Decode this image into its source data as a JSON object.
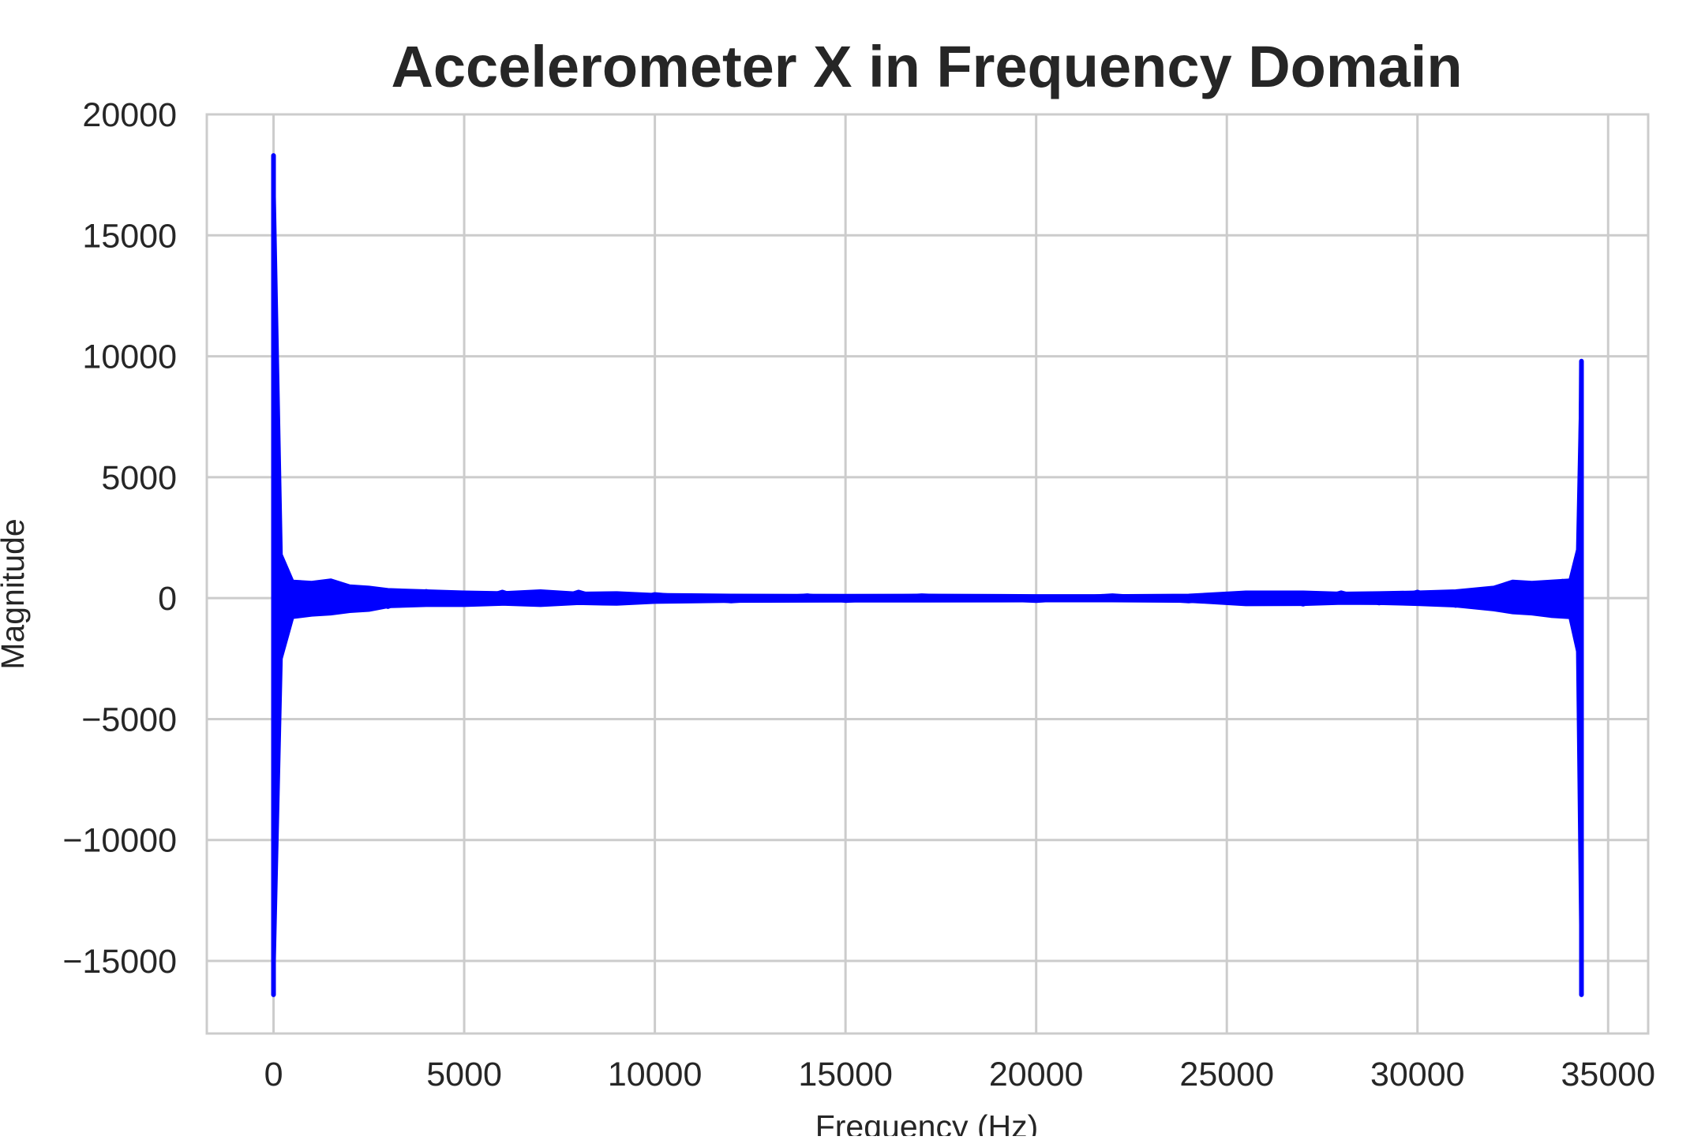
{
  "chart_data": {
    "type": "line",
    "title": "Accelerometer X in Frequency Domain",
    "xlabel": "Frequency (Hz)",
    "ylabel": "Magnitude",
    "xlim": [
      -1750,
      36050
    ],
    "ylim": [
      -18000,
      20000
    ],
    "grid": true,
    "legend": "none",
    "x_ticks": [
      0,
      5000,
      10000,
      15000,
      20000,
      25000,
      30000,
      35000
    ],
    "x_tick_labels": [
      "0",
      "5000",
      "10000",
      "15000",
      "20000",
      "25000",
      "30000",
      "35000"
    ],
    "y_ticks": [
      20000,
      15000,
      10000,
      5000,
      0,
      -5000,
      -10000,
      -15000
    ],
    "y_tick_labels": [
      "20000",
      "15000",
      "10000",
      "5000",
      "0",
      "−5000",
      "−10000",
      "−15000"
    ],
    "series": [
      {
        "color": "#0000ff",
        "x": [
          0,
          0,
          0,
          30,
          60,
          120,
          200,
          400,
          700,
          1000,
          1500,
          2000,
          2500,
          3000,
          4000,
          5000,
          6000,
          7000,
          8000,
          9000,
          10000,
          12000,
          14000,
          15000,
          17000,
          20000,
          22000,
          24000,
          26000,
          27000,
          28000,
          29000,
          30000,
          31000,
          32000,
          32500,
          33000,
          33500,
          33800,
          34000,
          34150,
          34250,
          34300,
          34300,
          34300
        ],
        "y": [
          18300,
          -16400,
          3500,
          -2500,
          1800,
          -1200,
          700,
          -650,
          600,
          -550,
          650,
          -500,
          400,
          -350,
          280,
          -250,
          250,
          -250,
          250,
          -200,
          150,
          -120,
          100,
          -100,
          100,
          -100,
          100,
          -120,
          200,
          -250,
          220,
          -200,
          250,
          -300,
          400,
          -500,
          600,
          -650,
          700,
          -700,
          1200,
          -2000,
          9800,
          -16400,
          3000
        ],
        "envelope": [
          [
            0,
            18300,
            -16400
          ],
          [
            200,
            1800,
            -2500
          ],
          [
            500,
            700,
            -800
          ],
          [
            1000,
            650,
            -700
          ],
          [
            1500,
            750,
            -650
          ],
          [
            2000,
            500,
            -550
          ],
          [
            2500,
            450,
            -500
          ],
          [
            3000,
            350,
            -350
          ],
          [
            4000,
            300,
            -300
          ],
          [
            5000,
            250,
            -300
          ],
          [
            6000,
            220,
            -250
          ],
          [
            7000,
            300,
            -300
          ],
          [
            8000,
            200,
            -220
          ],
          [
            9000,
            220,
            -250
          ],
          [
            10000,
            150,
            -170
          ],
          [
            12000,
            120,
            -130
          ],
          [
            15000,
            110,
            -120
          ],
          [
            17000,
            120,
            -120
          ],
          [
            20000,
            100,
            -110
          ],
          [
            22000,
            100,
            -110
          ],
          [
            24000,
            120,
            -130
          ],
          [
            25500,
            250,
            -270
          ],
          [
            27000,
            250,
            -260
          ],
          [
            28000,
            200,
            -210
          ],
          [
            29000,
            220,
            -220
          ],
          [
            30000,
            250,
            -260
          ],
          [
            31000,
            300,
            -320
          ],
          [
            32000,
            450,
            -480
          ],
          [
            32500,
            700,
            -600
          ],
          [
            33000,
            650,
            -650
          ],
          [
            33500,
            700,
            -750
          ],
          [
            34000,
            750,
            -800
          ],
          [
            34200,
            2000,
            -2200
          ],
          [
            34300,
            9800,
            -16400
          ]
        ]
      }
    ]
  }
}
